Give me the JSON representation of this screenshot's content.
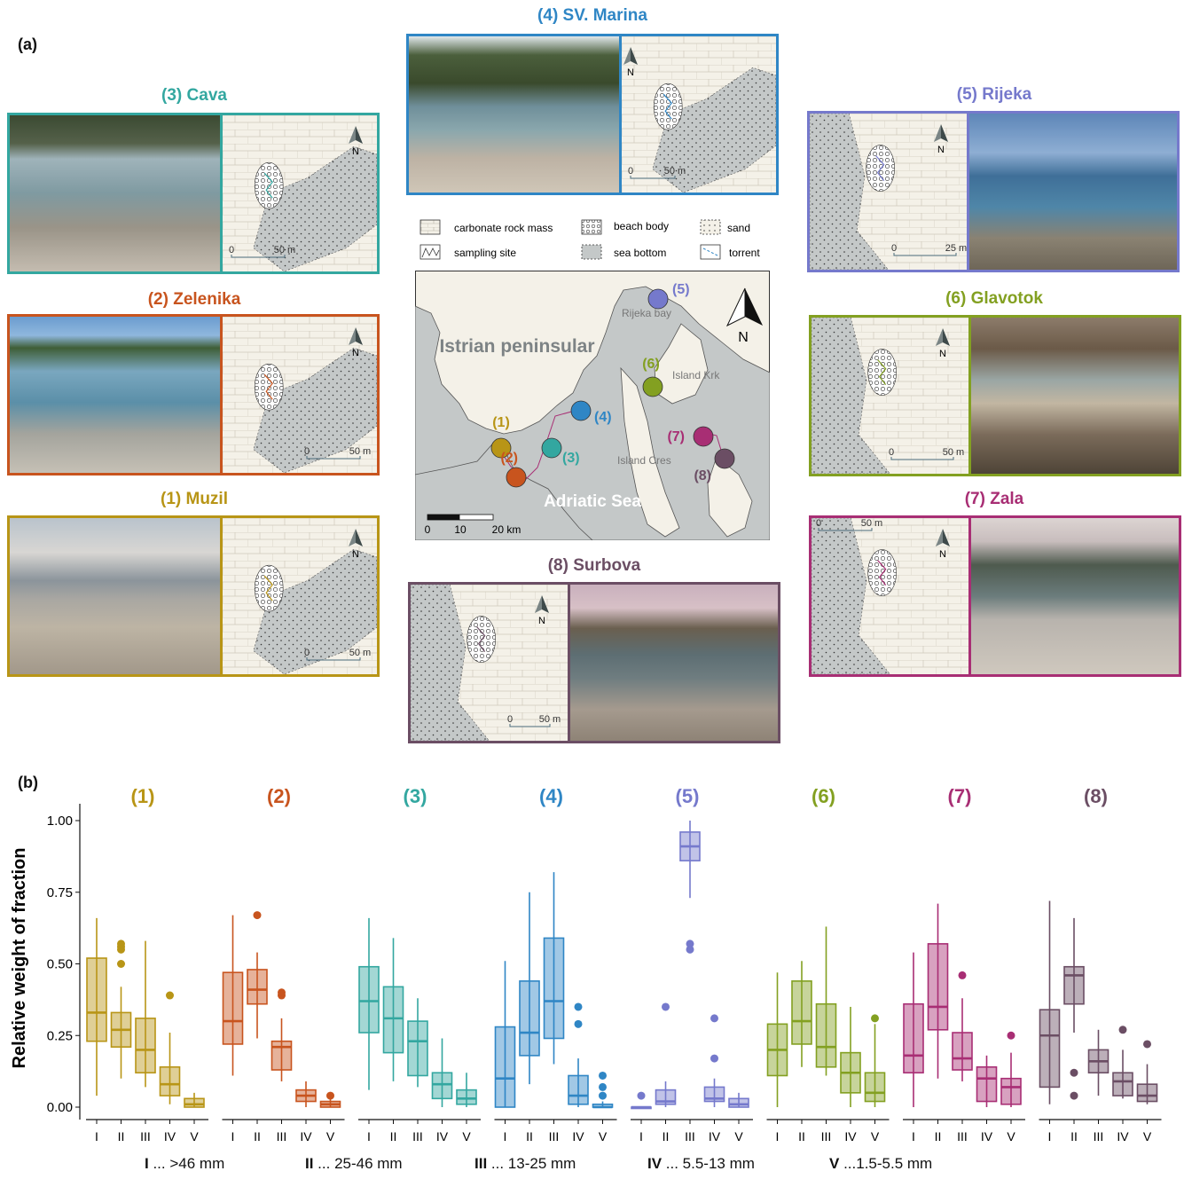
{
  "panel_labels": {
    "a": "(a)",
    "b": "(b)"
  },
  "colors": {
    "s1": "#b89516",
    "s2": "#c8541e",
    "s3": "#33a7a0",
    "s4": "#2f86c5",
    "s5": "#7579cc",
    "s6": "#83a021",
    "s7": "#a82e74",
    "s8": "#6b4e64",
    "sea": "#c4c8c8",
    "land": "#f4f1e8"
  },
  "sites": [
    {
      "id": "s3",
      "title": "(3) Cava",
      "scale": "50 m"
    },
    {
      "id": "s4",
      "title": "(4) SV. Marina",
      "scale": "50 m"
    },
    {
      "id": "s5",
      "title": "(5) Rijeka",
      "scale": "25 m"
    },
    {
      "id": "s2",
      "title": "(2) Zelenika",
      "scale": "50 m"
    },
    {
      "id": "s6",
      "title": "(6) Glavotok",
      "scale": "50 m"
    },
    {
      "id": "s1",
      "title": "(1) Muzil",
      "scale": "50 m"
    },
    {
      "id": "s7",
      "title": "(7) Zala",
      "scale": "50 m"
    },
    {
      "id": "s8",
      "title": "(8) Surbova",
      "scale": "50 m"
    }
  ],
  "north_label": "N",
  "legend": {
    "items": [
      "carbonate rock mass",
      "beach body",
      "sand",
      "sampling site",
      "sea bottom",
      "torrent"
    ]
  },
  "overview_map": {
    "labels": {
      "istrian": "Istrian peninsular",
      "rijeka_bay": "Rijeka bay",
      "krk": "Island Krk",
      "cres": "Island Cres",
      "adriatic": "Adriatic Sea"
    },
    "markers": [
      "(1)",
      "(2)",
      "(3)",
      "(4)",
      "(5)",
      "(6)",
      "(7)",
      "(8)"
    ],
    "scale_ticks": [
      "0",
      "10",
      "20 km"
    ]
  },
  "chart_data": {
    "type": "boxplot",
    "ylabel": "Relative weight of fraction",
    "ylim": [
      0,
      1.05
    ],
    "yticks": [
      "0.00",
      "0.25",
      "0.50",
      "0.75",
      "1.00"
    ],
    "categories": [
      "I",
      "II",
      "III",
      "IV",
      "V"
    ],
    "facets": [
      {
        "name": "(1)",
        "color_key": "s1",
        "boxes": [
          {
            "min": 0.04,
            "q1": 0.23,
            "median": 0.33,
            "q3": 0.52,
            "max": 0.66,
            "outliers": []
          },
          {
            "min": 0.1,
            "q1": 0.21,
            "median": 0.27,
            "q3": 0.33,
            "max": 0.42,
            "outliers": [
              0.5,
              0.55,
              0.56,
              0.57
            ]
          },
          {
            "min": 0.07,
            "q1": 0.12,
            "median": 0.2,
            "q3": 0.31,
            "max": 0.58,
            "outliers": []
          },
          {
            "min": 0.01,
            "q1": 0.04,
            "median": 0.08,
            "q3": 0.14,
            "max": 0.26,
            "outliers": [
              0.39
            ]
          },
          {
            "min": 0.0,
            "q1": 0.0,
            "median": 0.01,
            "q3": 0.03,
            "max": 0.05,
            "outliers": []
          }
        ]
      },
      {
        "name": "(2)",
        "color_key": "s2",
        "boxes": [
          {
            "min": 0.11,
            "q1": 0.22,
            "median": 0.3,
            "q3": 0.47,
            "max": 0.67,
            "outliers": []
          },
          {
            "min": 0.24,
            "q1": 0.36,
            "median": 0.41,
            "q3": 0.48,
            "max": 0.54,
            "outliers": [
              0.67
            ]
          },
          {
            "min": 0.09,
            "q1": 0.13,
            "median": 0.21,
            "q3": 0.23,
            "max": 0.31,
            "outliers": [
              0.39,
              0.4
            ]
          },
          {
            "min": 0.0,
            "q1": 0.02,
            "median": 0.04,
            "q3": 0.06,
            "max": 0.09,
            "outliers": []
          },
          {
            "min": 0.0,
            "q1": 0.0,
            "median": 0.01,
            "q3": 0.02,
            "max": 0.03,
            "outliers": [
              0.04
            ]
          }
        ]
      },
      {
        "name": "(3)",
        "color_key": "s3",
        "boxes": [
          {
            "min": 0.06,
            "q1": 0.26,
            "median": 0.37,
            "q3": 0.49,
            "max": 0.66,
            "outliers": []
          },
          {
            "min": 0.09,
            "q1": 0.19,
            "median": 0.31,
            "q3": 0.42,
            "max": 0.59,
            "outliers": []
          },
          {
            "min": 0.07,
            "q1": 0.11,
            "median": 0.23,
            "q3": 0.3,
            "max": 0.38,
            "outliers": []
          },
          {
            "min": 0.0,
            "q1": 0.03,
            "median": 0.08,
            "q3": 0.12,
            "max": 0.24,
            "outliers": []
          },
          {
            "min": 0.0,
            "q1": 0.01,
            "median": 0.03,
            "q3": 0.06,
            "max": 0.12,
            "outliers": []
          }
        ]
      },
      {
        "name": "(4)",
        "color_key": "s4",
        "boxes": [
          {
            "min": 0.0,
            "q1": 0.0,
            "median": 0.1,
            "q3": 0.28,
            "max": 0.51,
            "outliers": []
          },
          {
            "min": 0.08,
            "q1": 0.18,
            "median": 0.26,
            "q3": 0.44,
            "max": 0.75,
            "outliers": []
          },
          {
            "min": 0.15,
            "q1": 0.24,
            "median": 0.37,
            "q3": 0.59,
            "max": 0.82,
            "outliers": []
          },
          {
            "min": 0.0,
            "q1": 0.01,
            "median": 0.04,
            "q3": 0.11,
            "max": 0.17,
            "outliers": [
              0.29,
              0.35
            ]
          },
          {
            "min": 0.0,
            "q1": 0.0,
            "median": 0.0,
            "q3": 0.01,
            "max": 0.02,
            "outliers": [
              0.04,
              0.07,
              0.11
            ]
          }
        ]
      },
      {
        "name": "(5)",
        "color_key": "s5",
        "boxes": [
          {
            "min": 0.0,
            "q1": 0.0,
            "median": 0.0,
            "q3": 0.0,
            "max": 0.0,
            "outliers": [
              0.04
            ]
          },
          {
            "min": 0.0,
            "q1": 0.01,
            "median": 0.02,
            "q3": 0.06,
            "max": 0.09,
            "outliers": [
              0.35
            ]
          },
          {
            "min": 0.73,
            "q1": 0.86,
            "median": 0.91,
            "q3": 0.96,
            "max": 1.0,
            "outliers": [
              0.55,
              0.57
            ]
          },
          {
            "min": 0.0,
            "q1": 0.02,
            "median": 0.03,
            "q3": 0.07,
            "max": 0.1,
            "outliers": [
              0.17,
              0.31
            ]
          },
          {
            "min": 0.0,
            "q1": 0.0,
            "median": 0.01,
            "q3": 0.03,
            "max": 0.05,
            "outliers": []
          }
        ]
      },
      {
        "name": "(6)",
        "color_key": "s6",
        "boxes": [
          {
            "min": 0.0,
            "q1": 0.11,
            "median": 0.2,
            "q3": 0.29,
            "max": 0.47,
            "outliers": []
          },
          {
            "min": 0.14,
            "q1": 0.22,
            "median": 0.3,
            "q3": 0.44,
            "max": 0.51,
            "outliers": []
          },
          {
            "min": 0.11,
            "q1": 0.14,
            "median": 0.21,
            "q3": 0.36,
            "max": 0.63,
            "outliers": []
          },
          {
            "min": 0.0,
            "q1": 0.05,
            "median": 0.12,
            "q3": 0.19,
            "max": 0.35,
            "outliers": []
          },
          {
            "min": 0.0,
            "q1": 0.02,
            "median": 0.05,
            "q3": 0.12,
            "max": 0.29,
            "outliers": [
              0.31
            ]
          }
        ]
      },
      {
        "name": "(7)",
        "color_key": "s7",
        "boxes": [
          {
            "min": 0.0,
            "q1": 0.12,
            "median": 0.18,
            "q3": 0.36,
            "max": 0.54,
            "outliers": []
          },
          {
            "min": 0.1,
            "q1": 0.27,
            "median": 0.35,
            "q3": 0.57,
            "max": 0.71,
            "outliers": []
          },
          {
            "min": 0.09,
            "q1": 0.13,
            "median": 0.17,
            "q3": 0.26,
            "max": 0.38,
            "outliers": [
              0.46
            ]
          },
          {
            "min": 0.0,
            "q1": 0.02,
            "median": 0.1,
            "q3": 0.14,
            "max": 0.18,
            "outliers": []
          },
          {
            "min": 0.0,
            "q1": 0.01,
            "median": 0.07,
            "q3": 0.1,
            "max": 0.19,
            "outliers": [
              0.25
            ]
          }
        ]
      },
      {
        "name": "(8)",
        "color_key": "s8",
        "boxes": [
          {
            "min": 0.01,
            "q1": 0.07,
            "median": 0.25,
            "q3": 0.34,
            "max": 0.72,
            "outliers": []
          },
          {
            "min": 0.26,
            "q1": 0.36,
            "median": 0.46,
            "q3": 0.49,
            "max": 0.66,
            "outliers": [
              0.12,
              0.04
            ]
          },
          {
            "min": 0.04,
            "q1": 0.12,
            "median": 0.16,
            "q3": 0.2,
            "max": 0.27,
            "outliers": []
          },
          {
            "min": 0.03,
            "q1": 0.04,
            "median": 0.09,
            "q3": 0.12,
            "max": 0.2,
            "outliers": [
              0.27
            ]
          },
          {
            "min": 0.01,
            "q1": 0.02,
            "median": 0.04,
            "q3": 0.08,
            "max": 0.15,
            "outliers": [
              0.22
            ]
          }
        ]
      }
    ],
    "footnote": [
      {
        "bold": "I",
        "text": " ... >46 mm"
      },
      {
        "bold": "II",
        "text": " ... 25-46 mm"
      },
      {
        "bold": "III",
        "text": " ... 13-25 mm"
      },
      {
        "bold": "IV",
        "text": " ... 5.5-13 mm"
      },
      {
        "bold": "V",
        "text": " ...1.5-5.5 mm"
      }
    ]
  }
}
